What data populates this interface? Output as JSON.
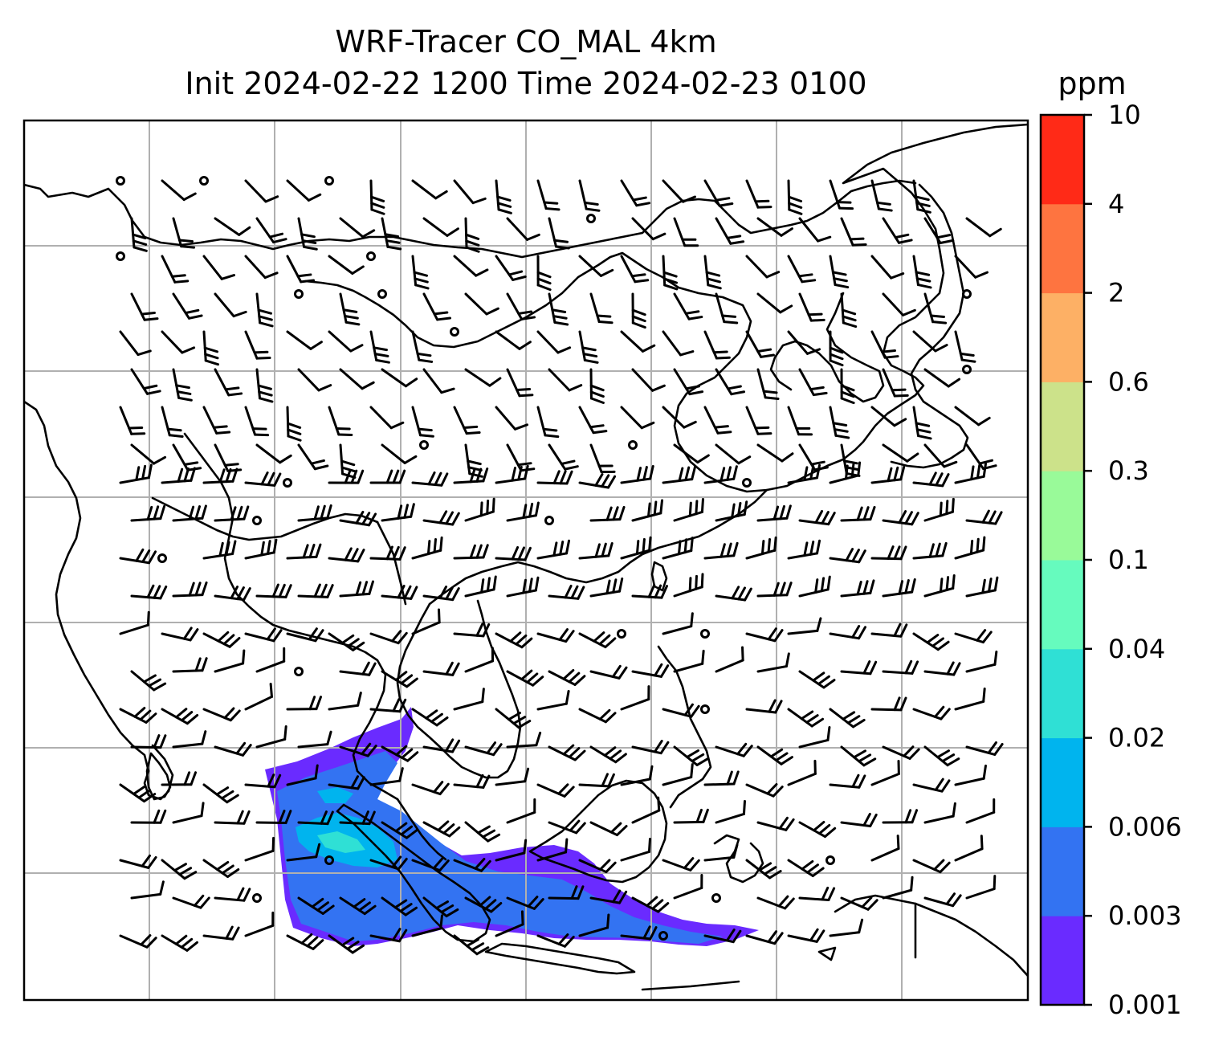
{
  "title": {
    "line1": "WRF-Tracer CO_MAL 4km",
    "line2": "Init 2024-02-22 1200 Time 2024-02-23 0100"
  },
  "colorbar": {
    "unit": "ppm",
    "levels": [
      "0.001",
      "0.003",
      "0.006",
      "0.02",
      "0.04",
      "0.1",
      "0.3",
      "0.6",
      "2",
      "4",
      "10"
    ],
    "colors": [
      "#6a2bff",
      "#3373f2",
      "#00b4ee",
      "#2fe0d5",
      "#66fbbe",
      "#99fa99",
      "#cce28a",
      "#fdb065",
      "#fe7440",
      "#ff2a17"
    ]
  },
  "colors": {
    "coastline": "#000000",
    "gridline": "#b0b0b0",
    "wind_barb": "#000000"
  }
}
